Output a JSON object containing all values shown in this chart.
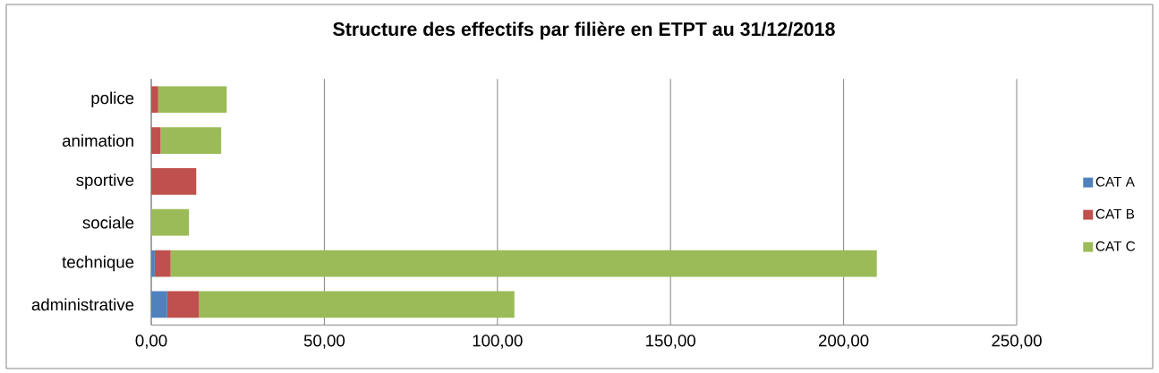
{
  "chart_data": {
    "type": "bar",
    "orientation": "horizontal",
    "stacked": true,
    "title": "Structure des effectifs par filière en ETPT au 31/12/2018",
    "categories": [
      "police",
      "animation",
      "sportive",
      "sociale",
      "technique",
      "administrative"
    ],
    "series": [
      {
        "name": "CAT A",
        "color": "#4f81bd",
        "values": [
          0,
          0,
          0,
          0,
          1.0,
          4.6
        ]
      },
      {
        "name": "CAT B",
        "color": "#c0504d",
        "values": [
          2.0,
          2.7,
          13.0,
          0,
          4.6,
          9.2
        ]
      },
      {
        "name": "CAT C",
        "color": "#9bbb59",
        "values": [
          19.8,
          17.5,
          0,
          10.9,
          204.0,
          91.1
        ]
      }
    ],
    "xlim": [
      0,
      250
    ],
    "xticks": [
      {
        "value": 0,
        "label": "0,00"
      },
      {
        "value": 50,
        "label": "50,00"
      },
      {
        "value": 100,
        "label": "100,00"
      },
      {
        "value": 150,
        "label": "150,00"
      },
      {
        "value": 200,
        "label": "200,00"
      },
      {
        "value": 250,
        "label": "250,00"
      }
    ],
    "grid": "x",
    "legend": "right"
  }
}
